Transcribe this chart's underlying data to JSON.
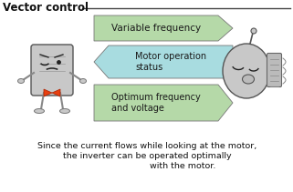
{
  "title": "Vector control",
  "arrow1_label": "Variable frequency",
  "arrow2_label": "Motor operation\nstatus",
  "arrow3_label": "Optimum frequency\nand voltage",
  "bottom_text1": "Since the current flows while looking at the motor,",
  "bottom_text2": "the inverter can be operated optimally",
  "bottom_text3": "with the motor.",
  "arrow1_color": "#b5d9a8",
  "arrow2_color": "#a8dce0",
  "arrow3_color": "#b5d9a8",
  "bg_color": "#ffffff",
  "title_color": "#111111",
  "text_color": "#111111",
  "line_color": "#444444",
  "robot_body_color": "#c8c8c8",
  "robot_edge_color": "#555555",
  "bowtie_color": "#e84010"
}
